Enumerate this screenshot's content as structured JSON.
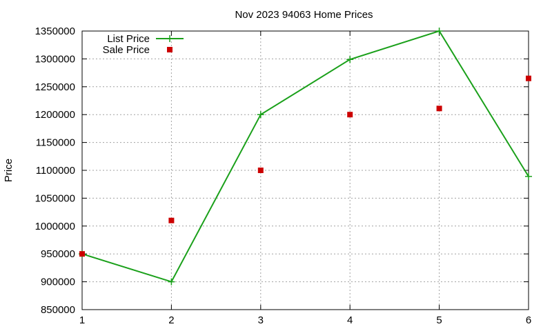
{
  "chart_data": {
    "type": "line",
    "title": "Nov 2023 94063 Home Prices",
    "xlabel": "",
    "ylabel": "Price",
    "x": [
      1,
      2,
      3,
      4,
      5,
      6
    ],
    "xlim": [
      1,
      6
    ],
    "ylim": [
      850000,
      1350000
    ],
    "x_ticks": [
      "1",
      "2",
      "3",
      "4",
      "5",
      "6"
    ],
    "y_ticks": [
      "850000",
      "900000",
      "950000",
      "1000000",
      "1050000",
      "1100000",
      "1150000",
      "1200000",
      "1250000",
      "1300000",
      "1350000"
    ],
    "grid": true,
    "legend_position": "top-left",
    "series": [
      {
        "name": "List Price",
        "style": "line+cross",
        "color": "#1aa01a",
        "values": [
          950000,
          900000,
          1200000,
          1299000,
          1350000,
          1089000
        ]
      },
      {
        "name": "Sale Price",
        "style": "square-points",
        "color": "#cc0000",
        "values": [
          950000,
          1010000,
          1100000,
          1200000,
          1211000,
          1265000
        ]
      }
    ]
  }
}
